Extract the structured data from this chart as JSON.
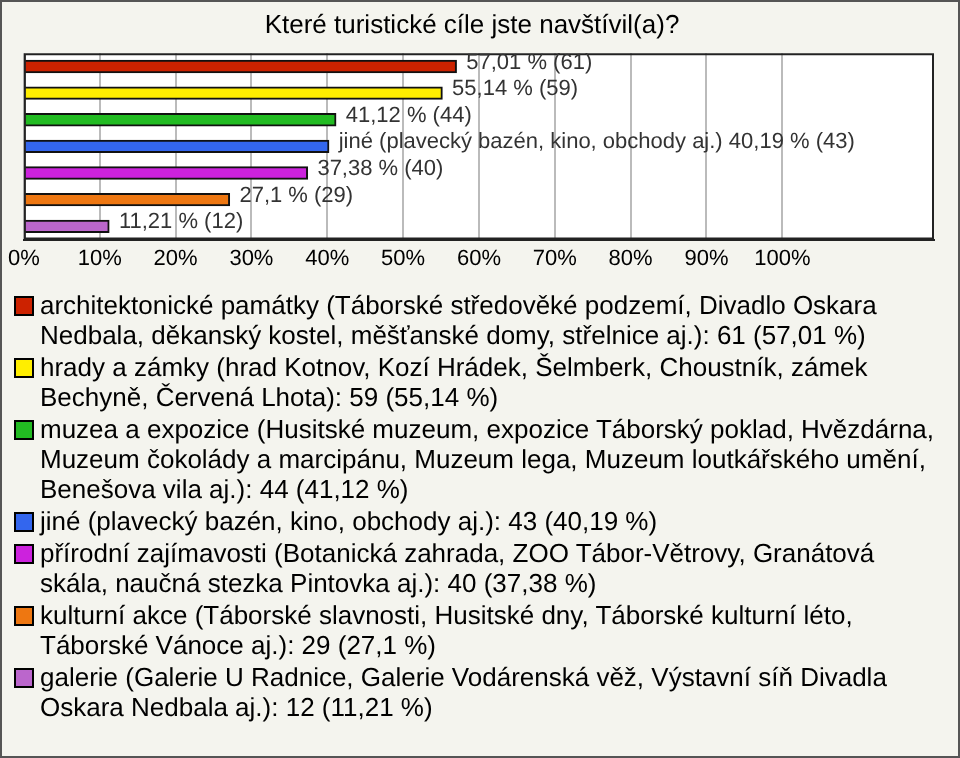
{
  "chart_data": {
    "type": "bar",
    "orientation": "horizontal",
    "title": "Které turistické cíle jste navštívil(a)?",
    "categories": [
      null,
      null,
      null,
      null,
      null,
      null,
      null
    ],
    "series": [
      {
        "name": "architektonické památky (Táborské středověké podzemí, Divadlo Oskara Nedbala, děkanský kostel, měšťanské domy, střelnice aj.): 61 (57,01 %)",
        "color": "#cc2200",
        "values": [
          57.01,
          null,
          null,
          null,
          null,
          null,
          null
        ],
        "value_labels": [
          "57,01 % (61)",
          null,
          null,
          null,
          null,
          null,
          null
        ]
      },
      {
        "name": "hrady a zámky (hrad Kotnov, Kozí Hrádek, Šelmberk, Choustník, zámek Bechyně, Červená Lhota): 59 (55,14 %)",
        "color": "#ffee00",
        "values": [
          null,
          55.14,
          null,
          null,
          null,
          null,
          null
        ],
        "value_labels": [
          null,
          "55,14 % (59)",
          null,
          null,
          null,
          null,
          null
        ]
      },
      {
        "name": "muzea a expozice (Husitské muzeum, expozice Táborský poklad, Hvězdárna, Muzeum čokolády a marcipánu, Muzeum lega, Muzeum loutkářského umění, Benešova vila aj.): 44 (41,12 %)",
        "color": "#22bb22",
        "values": [
          null,
          null,
          41.12,
          null,
          null,
          null,
          null
        ],
        "value_labels": [
          null,
          null,
          "41,12 % (44)",
          null,
          null,
          null,
          null
        ]
      },
      {
        "name": "jiné (plavecký bazén, kino, obchody aj.): 43 (40,19 %)",
        "color": "#3366ee",
        "values": [
          null,
          null,
          null,
          40.19,
          null,
          null,
          null
        ],
        "value_labels": [
          null,
          null,
          null,
          "jiné (plavecký bazén, kino, obchody aj.) 40,19 % (43)",
          null,
          null,
          null
        ]
      },
      {
        "name": "přírodní zajímavosti (Botanická zahrada, ZOO Tábor-Větrovy, Granátová skála, naučná stezka Pintovka aj.): 40 (37,38 %)",
        "color": "#cc22dd",
        "values": [
          null,
          null,
          null,
          null,
          37.38,
          null,
          null
        ],
        "value_labels": [
          null,
          null,
          null,
          null,
          "37,38 % (40)",
          null,
          null
        ]
      },
      {
        "name": "kulturní akce (Táborské slavnosti, Husitské dny, Táborské kulturní léto, Táborské Vánoce aj.): 29 (27,1 %)",
        "color": "#ee7711",
        "values": [
          null,
          null,
          null,
          null,
          null,
          27.1,
          null
        ],
        "value_labels": [
          null,
          null,
          null,
          null,
          null,
          "27,1 % (29)",
          null
        ]
      },
      {
        "name": "galerie (Galerie U Radnice, Galerie Vodárenská věž, Výstavní síň Divadla Oskara Nedbala aj.): 12 (11,21 %)",
        "color": "#bb66cc",
        "values": [
          null,
          null,
          null,
          null,
          null,
          null,
          11.21
        ],
        "value_labels": [
          null,
          null,
          null,
          null,
          null,
          null,
          "11,21 % (12)"
        ]
      }
    ],
    "xlim": [
      0,
      120
    ],
    "xticks": [
      {
        "value": 0,
        "label": "0%"
      },
      {
        "value": 10,
        "label": "10%"
      },
      {
        "value": 20,
        "label": "20%"
      },
      {
        "value": 30,
        "label": "30%"
      },
      {
        "value": 40,
        "label": "40%"
      },
      {
        "value": 50,
        "label": "50%"
      },
      {
        "value": 60,
        "label": "60%"
      },
      {
        "value": 70,
        "label": "70%"
      },
      {
        "value": 80,
        "label": "80%"
      },
      {
        "value": 90,
        "label": "90%"
      },
      {
        "value": 100,
        "label": "100%"
      }
    ],
    "grid": "x",
    "legend": "bottom",
    "tick_labels": "x"
  }
}
